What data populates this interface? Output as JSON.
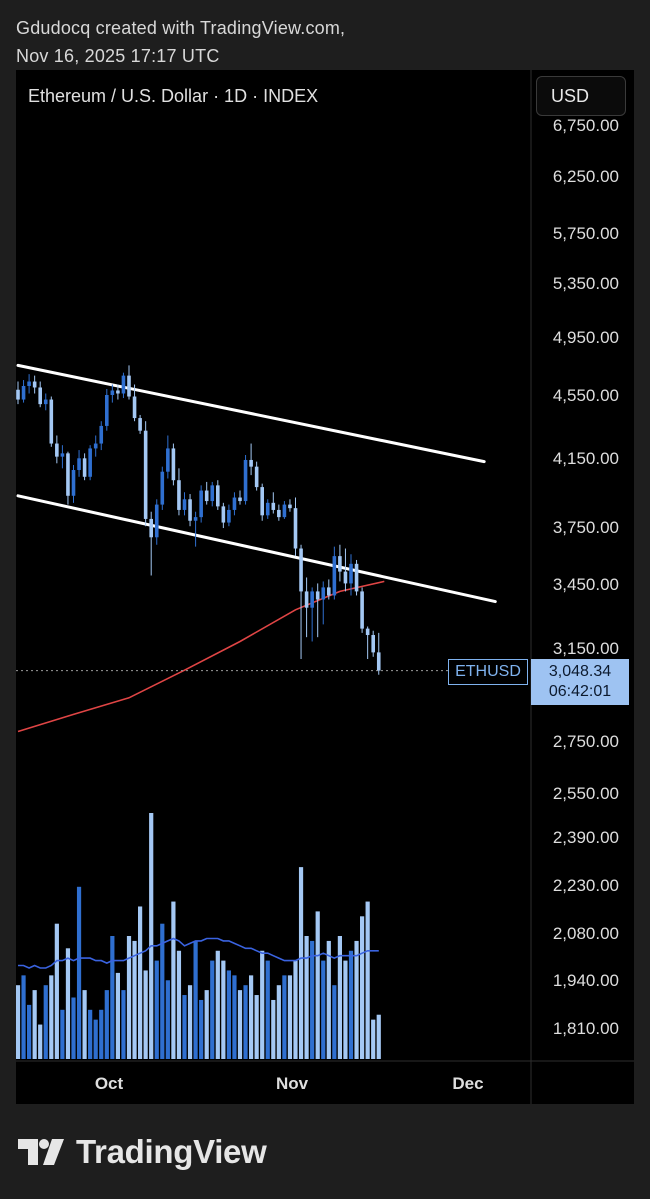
{
  "header": {
    "line1": "Gdudocq created with TradingView.com,",
    "line2": "Nov 16, 2025 17:17 UTC"
  },
  "chart": {
    "symbol_title": "Ethereum / U.S. Dollar · 1D · INDEX",
    "currency_button": "USD",
    "last_label": "ETHUSD",
    "last_price": "3,048.34",
    "countdown": "06:42:01",
    "colors": {
      "up": "#2f6fd0",
      "down": "#a4c8f4",
      "ma": "#e04545",
      "vol_ma": "#3a63e0",
      "channel": "#ffffff"
    }
  },
  "chart_data": {
    "type": "candlestick",
    "title": "Ethereum / U.S. Dollar · 1D · INDEX",
    "y_axis_ticks": [
      "6,750.00",
      "6,250.00",
      "5,750.00",
      "5,350.00",
      "4,950.00",
      "4,550.00",
      "4,150.00",
      "3,750.00",
      "3,450.00",
      "3,150.00",
      "2,750.00",
      "2,550.00",
      "2,390.00",
      "2,230.00",
      "2,080.00",
      "1,940.00",
      "1,810.00"
    ],
    "y_axis_scale": "log",
    "x_axis_ticks": [
      "Oct",
      "Nov",
      "Dec"
    ],
    "last_price": 3048.34,
    "candles": [
      {
        "o": 4585,
        "h": 4640,
        "l": 4490,
        "c": 4520
      },
      {
        "o": 4520,
        "h": 4650,
        "l": 4500,
        "c": 4610
      },
      {
        "o": 4610,
        "h": 4690,
        "l": 4560,
        "c": 4640
      },
      {
        "o": 4640,
        "h": 4680,
        "l": 4560,
        "c": 4600
      },
      {
        "o": 4600,
        "h": 4640,
        "l": 4470,
        "c": 4490
      },
      {
        "o": 4490,
        "h": 4560,
        "l": 4450,
        "c": 4520
      },
      {
        "o": 4520,
        "h": 4540,
        "l": 4220,
        "c": 4240
      },
      {
        "o": 4240,
        "h": 4290,
        "l": 4120,
        "c": 4160
      },
      {
        "o": 4160,
        "h": 4230,
        "l": 4090,
        "c": 4180
      },
      {
        "o": 4180,
        "h": 4190,
        "l": 3880,
        "c": 3930
      },
      {
        "o": 3930,
        "h": 4110,
        "l": 3890,
        "c": 4080
      },
      {
        "o": 4080,
        "h": 4200,
        "l": 4040,
        "c": 4150
      },
      {
        "o": 4150,
        "h": 4180,
        "l": 4020,
        "c": 4040
      },
      {
        "o": 4040,
        "h": 4230,
        "l": 4020,
        "c": 4210
      },
      {
        "o": 4210,
        "h": 4290,
        "l": 4160,
        "c": 4240
      },
      {
        "o": 4240,
        "h": 4380,
        "l": 4200,
        "c": 4350
      },
      {
        "o": 4350,
        "h": 4590,
        "l": 4320,
        "c": 4550
      },
      {
        "o": 4550,
        "h": 4620,
        "l": 4500,
        "c": 4580
      },
      {
        "o": 4580,
        "h": 4620,
        "l": 4520,
        "c": 4560
      },
      {
        "o": 4560,
        "h": 4700,
        "l": 4530,
        "c": 4680
      },
      {
        "o": 4680,
        "h": 4750,
        "l": 4520,
        "c": 4540
      },
      {
        "o": 4540,
        "h": 4620,
        "l": 4380,
        "c": 4400
      },
      {
        "o": 4400,
        "h": 4420,
        "l": 4300,
        "c": 4320
      },
      {
        "o": 4320,
        "h": 4380,
        "l": 3760,
        "c": 3800
      },
      {
        "o": 3800,
        "h": 3840,
        "l": 3500,
        "c": 3700
      },
      {
        "o": 3700,
        "h": 3910,
        "l": 3660,
        "c": 3880
      },
      {
        "o": 3880,
        "h": 4100,
        "l": 3850,
        "c": 4070
      },
      {
        "o": 4070,
        "h": 4290,
        "l": 4030,
        "c": 4210
      },
      {
        "o": 4210,
        "h": 4240,
        "l": 3990,
        "c": 4020
      },
      {
        "o": 4020,
        "h": 4090,
        "l": 3820,
        "c": 3850
      },
      {
        "o": 3850,
        "h": 3950,
        "l": 3820,
        "c": 3910
      },
      {
        "o": 3910,
        "h": 3940,
        "l": 3760,
        "c": 3790
      },
      {
        "o": 3790,
        "h": 3840,
        "l": 3650,
        "c": 3810
      },
      {
        "o": 3810,
        "h": 3990,
        "l": 3780,
        "c": 3960
      },
      {
        "o": 3960,
        "h": 4010,
        "l": 3880,
        "c": 3900
      },
      {
        "o": 3900,
        "h": 4010,
        "l": 3870,
        "c": 3990
      },
      {
        "o": 3990,
        "h": 4020,
        "l": 3850,
        "c": 3870
      },
      {
        "o": 3870,
        "h": 3890,
        "l": 3750,
        "c": 3780
      },
      {
        "o": 3780,
        "h": 3880,
        "l": 3760,
        "c": 3850
      },
      {
        "o": 3850,
        "h": 3950,
        "l": 3820,
        "c": 3920
      },
      {
        "o": 3920,
        "h": 3960,
        "l": 3880,
        "c": 3900
      },
      {
        "o": 3900,
        "h": 4170,
        "l": 3880,
        "c": 4140
      },
      {
        "o": 4140,
        "h": 4240,
        "l": 4050,
        "c": 4100
      },
      {
        "o": 4100,
        "h": 4130,
        "l": 3960,
        "c": 3980
      },
      {
        "o": 3980,
        "h": 4000,
        "l": 3790,
        "c": 3820
      },
      {
        "o": 3820,
        "h": 3910,
        "l": 3800,
        "c": 3890
      },
      {
        "o": 3890,
        "h": 3950,
        "l": 3830,
        "c": 3850
      },
      {
        "o": 3850,
        "h": 3880,
        "l": 3790,
        "c": 3810
      },
      {
        "o": 3810,
        "h": 3900,
        "l": 3800,
        "c": 3880
      },
      {
        "o": 3880,
        "h": 3910,
        "l": 3840,
        "c": 3860
      },
      {
        "o": 3860,
        "h": 3920,
        "l": 3600,
        "c": 3640
      },
      {
        "o": 3640,
        "h": 3660,
        "l": 3100,
        "c": 3420
      },
      {
        "o": 3420,
        "h": 3490,
        "l": 3200,
        "c": 3340
      },
      {
        "o": 3340,
        "h": 3440,
        "l": 3180,
        "c": 3420
      },
      {
        "o": 3420,
        "h": 3460,
        "l": 3200,
        "c": 3380
      },
      {
        "o": 3380,
        "h": 3470,
        "l": 3260,
        "c": 3440
      },
      {
        "o": 3440,
        "h": 3480,
        "l": 3380,
        "c": 3400
      },
      {
        "o": 3400,
        "h": 3650,
        "l": 3380,
        "c": 3600
      },
      {
        "o": 3600,
        "h": 3660,
        "l": 3470,
        "c": 3520
      },
      {
        "o": 3520,
        "h": 3640,
        "l": 3420,
        "c": 3460
      },
      {
        "o": 3460,
        "h": 3610,
        "l": 3400,
        "c": 3560
      },
      {
        "o": 3560,
        "h": 3580,
        "l": 3400,
        "c": 3420
      },
      {
        "o": 3420,
        "h": 3440,
        "l": 3220,
        "c": 3240
      },
      {
        "o": 3240,
        "h": 3250,
        "l": 3100,
        "c": 3210
      },
      {
        "o": 3210,
        "h": 3230,
        "l": 3110,
        "c": 3130
      },
      {
        "o": 3130,
        "h": 3220,
        "l": 3030,
        "c": 3048.34
      }
    ],
    "moving_average": [
      {
        "i": 0,
        "v": 2790
      },
      {
        "i": 10,
        "v": 2860
      },
      {
        "i": 20,
        "v": 2930
      },
      {
        "i": 30,
        "v": 3050
      },
      {
        "i": 40,
        "v": 3180
      },
      {
        "i": 50,
        "v": 3330
      },
      {
        "i": 58,
        "v": 3420
      },
      {
        "i": 66,
        "v": 3470
      }
    ],
    "channel_upper": [
      {
        "i": 0,
        "v": 4750
      },
      {
        "i": 84,
        "v": 4130
      }
    ],
    "channel_lower": [
      {
        "i": 0,
        "v": 3930
      },
      {
        "i": 86,
        "v": 3370
      }
    ],
    "volume": [
      30,
      34,
      22,
      28,
      14,
      30,
      34,
      55,
      20,
      45,
      25,
      70,
      28,
      20,
      16,
      20,
      28,
      50,
      35,
      28,
      50,
      48,
      62,
      36,
      100,
      40,
      55,
      32,
      64,
      44,
      26,
      30,
      48,
      24,
      28,
      40,
      44,
      40,
      36,
      34,
      28,
      30,
      34,
      26,
      44,
      40,
      24,
      30,
      34,
      34,
      40,
      78,
      50,
      48,
      60,
      40,
      48,
      30,
      50,
      40,
      44,
      48,
      58,
      64,
      16,
      18
    ],
    "volume_ma": [
      38,
      38,
      37,
      38,
      37,
      37,
      38,
      40,
      40,
      41,
      40,
      41,
      41,
      41,
      40,
      40,
      39,
      40,
      40,
      40,
      41,
      42,
      43,
      44,
      46,
      46,
      47,
      48,
      49,
      48,
      46,
      47,
      48,
      48,
      49,
      49,
      49,
      48,
      48,
      47,
      46,
      45,
      45,
      44,
      43,
      43,
      42,
      41,
      40,
      40,
      40,
      41,
      41,
      42,
      42,
      43,
      42,
      41,
      42,
      42,
      42,
      42,
      43,
      44,
      44,
      44
    ]
  }
}
